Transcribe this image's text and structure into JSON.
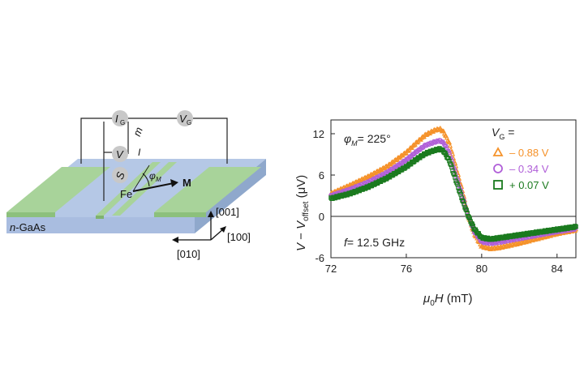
{
  "device": {
    "substrate_label": "n-GaAs",
    "substrate_label_italic": "n",
    "substrate_label_rest": "-GaAs",
    "ferromagnet_label": "Fe",
    "magnetization_label": "M",
    "angle_symbol": "φ",
    "angle_sub": "M",
    "meter_ig": "I",
    "meter_ig_sub": "G",
    "meter_vg": "V",
    "meter_vg_sub": "G",
    "meter_v": "V",
    "meter_s": "S",
    "label_m": "m",
    "label_i": "I",
    "axis_001": "[001]",
    "axis_100": "[100]",
    "axis_010": "[010]",
    "colors": {
      "substrate": "#b5c8e6",
      "substrate_side": "#8fa8cc",
      "contact": "#a8d39a",
      "contact_side": "#7fb36f",
      "meter": "#c8c8c8"
    }
  },
  "chart_data": {
    "type": "scatter",
    "title": "",
    "annotation_phi": "= 225°",
    "annotation_phi_symbol": "φ",
    "annotation_phi_sub": "M",
    "annotation_freq": "= 12.5 GHz",
    "annotation_freq_symbol": "f",
    "xlabel_mu": "μ",
    "xlabel_sub": "0",
    "xlabel_H": "H",
    "xlabel_unit": " (mT)",
    "ylabel_V": "V",
    "ylabel_minus": " − ",
    "ylabel_V2": "V",
    "ylabel_sub": "offset",
    "ylabel_unit": " (μV)",
    "xlim": [
      72,
      85
    ],
    "ylim": [
      -6,
      14
    ],
    "xticks": [
      72,
      76,
      80,
      84
    ],
    "yticks": [
      -6,
      0,
      6,
      12
    ],
    "zero_line": true,
    "legend_title": "V",
    "legend_title_sub": "G",
    "legend_title_eq": " =",
    "legend_position": "top-right",
    "series": [
      {
        "name": "– 0.88 V",
        "marker": "triangle",
        "color": "#f5922a",
        "x": [
          72,
          73,
          74,
          75,
          76,
          76.5,
          77,
          77.5,
          77.8,
          78,
          78.3,
          78.6,
          79,
          79.3,
          79.6,
          80,
          80.5,
          81,
          82,
          83,
          84,
          85
        ],
        "y": [
          3.3,
          4.5,
          5.8,
          7.3,
          9.3,
          10.6,
          11.8,
          12.5,
          12.7,
          12.2,
          10.5,
          7.5,
          3.5,
          0,
          -2.5,
          -4.4,
          -4.7,
          -4.5,
          -3.9,
          -3.2,
          -2.5,
          -2.0
        ]
      },
      {
        "name": "– 0.34 V",
        "marker": "circle",
        "color": "#b05fd8",
        "x": [
          72,
          73,
          74,
          75,
          76,
          76.5,
          77,
          77.5,
          77.8,
          78,
          78.3,
          78.6,
          79,
          79.3,
          79.6,
          80,
          80.5,
          81,
          82,
          83,
          84,
          85
        ],
        "y": [
          3.0,
          3.9,
          5.0,
          6.4,
          8.2,
          9.3,
          10.3,
          10.8,
          11.0,
          10.6,
          9.1,
          6.4,
          2.7,
          0,
          -2.2,
          -3.7,
          -3.9,
          -3.7,
          -3.2,
          -2.7,
          -2.2,
          -1.8
        ]
      },
      {
        "name": "+ 0.07 V",
        "marker": "square",
        "color": "#1a7a1e",
        "x": [
          72,
          73,
          74,
          75,
          76,
          76.5,
          77,
          77.5,
          77.8,
          78,
          78.3,
          78.6,
          79,
          79.3,
          79.6,
          80,
          80.5,
          81,
          82,
          83,
          84,
          85
        ],
        "y": [
          2.6,
          3.3,
          4.3,
          5.6,
          7.2,
          8.2,
          9.1,
          9.6,
          9.8,
          9.4,
          8.0,
          5.5,
          2.2,
          0,
          -1.8,
          -3.1,
          -3.3,
          -3.1,
          -2.7,
          -2.3,
          -1.9,
          -1.5
        ]
      }
    ]
  }
}
